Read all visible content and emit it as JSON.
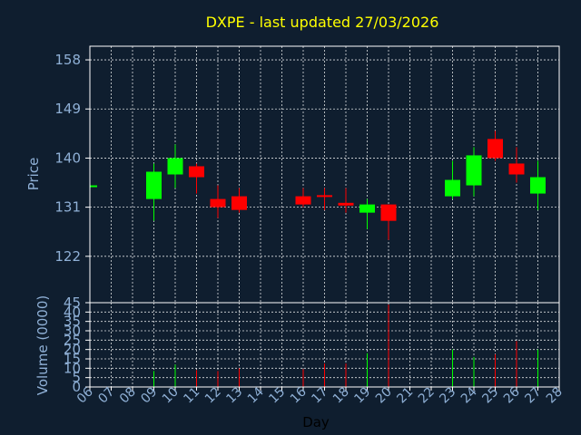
{
  "colors": {
    "background": "#0f1e2f",
    "up": "#00ff00",
    "down": "#ff0000",
    "title": "#ffff00",
    "axis_text": "#8fb0d6",
    "grid": "#ffffff"
  },
  "chart_data": [
    {
      "type": "candlestick",
      "title": "DXPE - last updated 27/03/2026",
      "ylabel": "Price",
      "ylim": [
        113.5,
        160.5
      ],
      "yticks": [
        122,
        131,
        140,
        149,
        158
      ],
      "grid": true,
      "days": [
        "06",
        "07",
        "08",
        "09",
        "10",
        "11",
        "12",
        "13",
        "14",
        "15",
        "16",
        "17",
        "18",
        "19",
        "20",
        "21",
        "22",
        "23",
        "24",
        "25",
        "26",
        "27",
        "28"
      ],
      "candles": [
        {
          "day": "06",
          "open": 135.0,
          "high": 135.0,
          "low": 135.0,
          "close": 135.0
        },
        {
          "day": "09",
          "open": 132.5,
          "high": 139.0,
          "low": 128.5,
          "close": 137.5
        },
        {
          "day": "10",
          "open": 137.0,
          "high": 142.5,
          "low": 134.5,
          "close": 140.0
        },
        {
          "day": "11",
          "open": 138.5,
          "high": 139.0,
          "low": 133.5,
          "close": 136.5
        },
        {
          "day": "12",
          "open": 132.5,
          "high": 135.0,
          "low": 129.0,
          "close": 131.0
        },
        {
          "day": "13",
          "open": 133.0,
          "high": 134.5,
          "low": 130.0,
          "close": 130.5
        },
        {
          "day": "16",
          "open": 133.0,
          "high": 134.5,
          "low": 131.0,
          "close": 131.5
        },
        {
          "day": "17",
          "open": 133.2,
          "high": 134.5,
          "low": 130.5,
          "close": 133.0
        },
        {
          "day": "18",
          "open": 131.8,
          "high": 134.5,
          "low": 130.0,
          "close": 131.3
        },
        {
          "day": "19",
          "open": 130.0,
          "high": 132.5,
          "low": 127.0,
          "close": 131.5
        },
        {
          "day": "20",
          "open": 131.5,
          "high": 131.5,
          "low": 125.0,
          "close": 128.5
        },
        {
          "day": "23",
          "open": 133.0,
          "high": 139.5,
          "low": 132.5,
          "close": 136.0
        },
        {
          "day": "24",
          "open": 135.0,
          "high": 142.0,
          "low": 133.0,
          "close": 140.5
        },
        {
          "day": "25",
          "open": 143.5,
          "high": 145.0,
          "low": 139.5,
          "close": 140.0
        },
        {
          "day": "26",
          "open": 139.0,
          "high": 142.0,
          "low": 135.5,
          "close": 137.0
        },
        {
          "day": "27",
          "open": 133.5,
          "high": 139.5,
          "low": 130.5,
          "close": 136.5
        }
      ]
    },
    {
      "type": "bar",
      "ylabel": "Volume (0000)",
      "xlabel": "Day",
      "ylim": [
        0,
        45
      ],
      "yticks": [
        0,
        5,
        10,
        15,
        20,
        25,
        30,
        35,
        40,
        45
      ],
      "grid": true,
      "bars": [
        {
          "day": "09",
          "value": 8.5,
          "up": true
        },
        {
          "day": "10",
          "value": 12.0,
          "up": true
        },
        {
          "day": "11",
          "value": 9.0,
          "up": false
        },
        {
          "day": "12",
          "value": 8.5,
          "up": false
        },
        {
          "day": "13",
          "value": 10.0,
          "up": false
        },
        {
          "day": "16",
          "value": 9.5,
          "up": false
        },
        {
          "day": "17",
          "value": 12.5,
          "up": false
        },
        {
          "day": "18",
          "value": 12.5,
          "up": false
        },
        {
          "day": "19",
          "value": 18.0,
          "up": true
        },
        {
          "day": "20",
          "value": 44.0,
          "up": false
        },
        {
          "day": "23",
          "value": 20.0,
          "up": true
        },
        {
          "day": "24",
          "value": 16.0,
          "up": true
        },
        {
          "day": "25",
          "value": 17.5,
          "up": false
        },
        {
          "day": "26",
          "value": 24.5,
          "up": false
        },
        {
          "day": "27",
          "value": 20.0,
          "up": true
        }
      ]
    }
  ]
}
